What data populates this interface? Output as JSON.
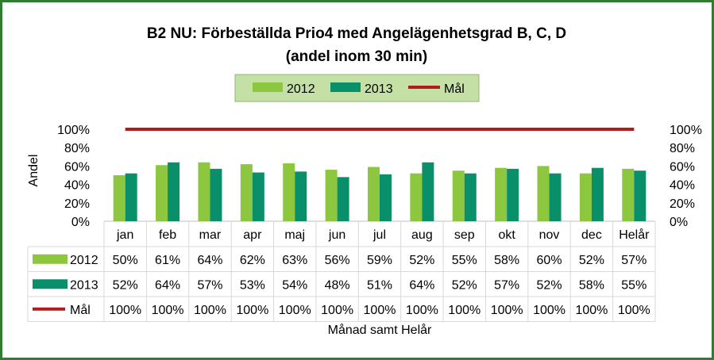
{
  "chart_data": {
    "type": "bar",
    "title_line1": "B2 NU: Förbeställda Prio4 med Angelägenhetsgrad B, C, D",
    "title_line2": "(andel inom 30 min)",
    "ylabel": "Andel",
    "xlabel": "Månad samt Helår",
    "ylim": [
      0,
      100
    ],
    "y_ticks": [
      "0%",
      "20%",
      "40%",
      "60%",
      "80%",
      "100%"
    ],
    "categories": [
      "jan",
      "feb",
      "mar",
      "apr",
      "maj",
      "jun",
      "jul",
      "aug",
      "sep",
      "okt",
      "nov",
      "dec",
      "Helår"
    ],
    "series": [
      {
        "name": "2012",
        "kind": "bar",
        "color": "#8dc63f",
        "values": [
          50,
          61,
          64,
          62,
          63,
          56,
          59,
          52,
          55,
          58,
          60,
          52,
          57
        ],
        "labels": [
          "50%",
          "61%",
          "64%",
          "62%",
          "63%",
          "56%",
          "59%",
          "52%",
          "55%",
          "58%",
          "60%",
          "52%",
          "57%"
        ]
      },
      {
        "name": "2013",
        "kind": "bar",
        "color": "#0a8f6b",
        "values": [
          52,
          64,
          57,
          53,
          54,
          48,
          51,
          64,
          52,
          57,
          52,
          58,
          55
        ],
        "labels": [
          "52%",
          "64%",
          "57%",
          "53%",
          "54%",
          "48%",
          "51%",
          "64%",
          "52%",
          "57%",
          "52%",
          "58%",
          "55%"
        ]
      },
      {
        "name": "Mål",
        "kind": "line",
        "color": "#b01c1c",
        "values": [
          100,
          100,
          100,
          100,
          100,
          100,
          100,
          100,
          100,
          100,
          100,
          100,
          100
        ],
        "labels": [
          "100%",
          "100%",
          "100%",
          "100%",
          "100%",
          "100%",
          "100%",
          "100%",
          "100%",
          "100%",
          "100%",
          "100%",
          "100%"
        ]
      }
    ],
    "legend_position": "top",
    "legend_bg": "#c5e0a5",
    "data_table": true
  }
}
